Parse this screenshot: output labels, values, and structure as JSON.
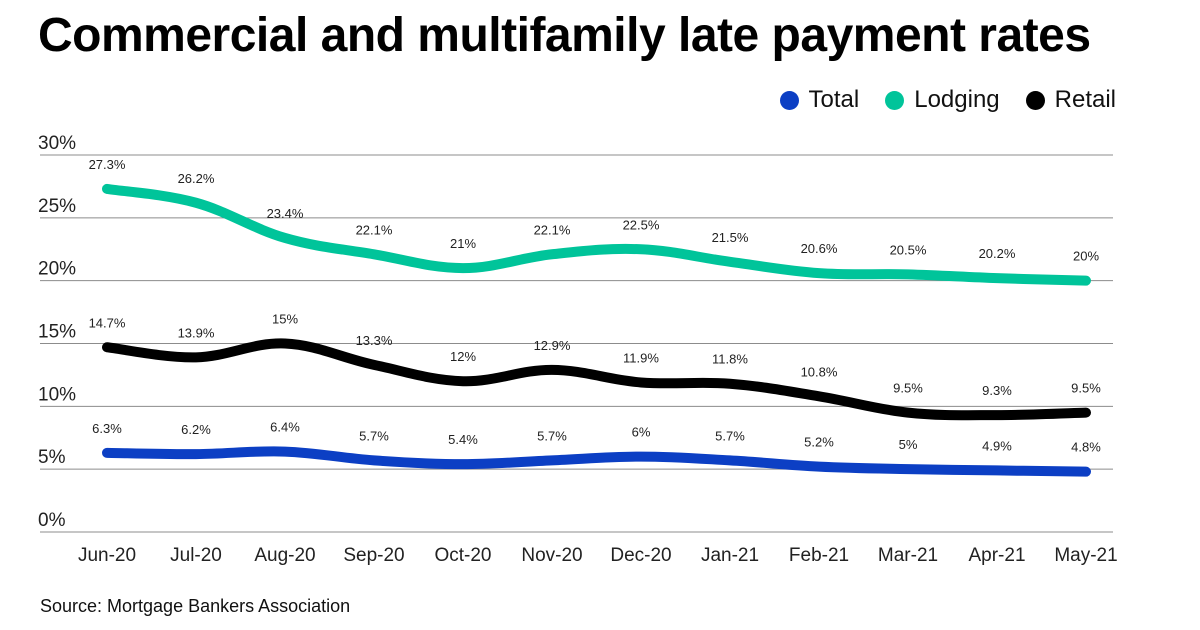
{
  "title": "Commercial and multifamily late payment rates",
  "source": "Source: Mortgage Bankers Association",
  "legend": [
    {
      "name": "Total",
      "color": "#0c3fc4"
    },
    {
      "name": "Lodging",
      "color": "#00c49a"
    },
    {
      "name": "Retail",
      "color": "#000000"
    }
  ],
  "chart_data": {
    "type": "line",
    "title": "Commercial and multifamily late payment rates",
    "xlabel": "",
    "ylabel": "",
    "ylim": [
      0,
      30
    ],
    "yticks": [
      "0%",
      "5%",
      "10%",
      "15%",
      "20%",
      "25%",
      "30%"
    ],
    "ytick_values": [
      0,
      5,
      10,
      15,
      20,
      25,
      30
    ],
    "grid": true,
    "legend_position": "top-right",
    "categories": [
      "Jun-20",
      "Jul-20",
      "Aug-20",
      "Sep-20",
      "Oct-20",
      "Nov-20",
      "Dec-20",
      "Jan-21",
      "Feb-21",
      "Mar-21",
      "Apr-21",
      "May-21"
    ],
    "series": [
      {
        "name": "Lodging",
        "color": "#00c49a",
        "values": [
          27.3,
          26.2,
          23.4,
          22.1,
          21,
          22.1,
          22.5,
          21.5,
          20.6,
          20.5,
          20.2,
          20
        ],
        "labels": [
          "27.3%",
          "26.2%",
          "23.4%",
          "22.1%",
          "21%",
          "22.1%",
          "22.5%",
          "21.5%",
          "20.6%",
          "20.5%",
          "20.2%",
          "20%"
        ]
      },
      {
        "name": "Retail",
        "color": "#000000",
        "values": [
          14.7,
          13.9,
          15,
          13.3,
          12,
          12.9,
          11.9,
          11.8,
          10.8,
          9.5,
          9.3,
          9.5
        ],
        "labels": [
          "14.7%",
          "13.9%",
          "15%",
          "13.3%",
          "12%",
          "12.9%",
          "11.9%",
          "11.8%",
          "10.8%",
          "9.5%",
          "9.3%",
          "9.5%"
        ]
      },
      {
        "name": "Total",
        "color": "#0c3fc4",
        "values": [
          6.3,
          6.2,
          6.4,
          5.7,
          5.4,
          5.7,
          6,
          5.7,
          5.2,
          5,
          4.9,
          4.8
        ],
        "labels": [
          "6.3%",
          "6.2%",
          "6.4%",
          "5.7%",
          "5.4%",
          "5.7%",
          "6%",
          "5.7%",
          "5.2%",
          "5%",
          "4.9%",
          "4.8%"
        ]
      }
    ]
  }
}
